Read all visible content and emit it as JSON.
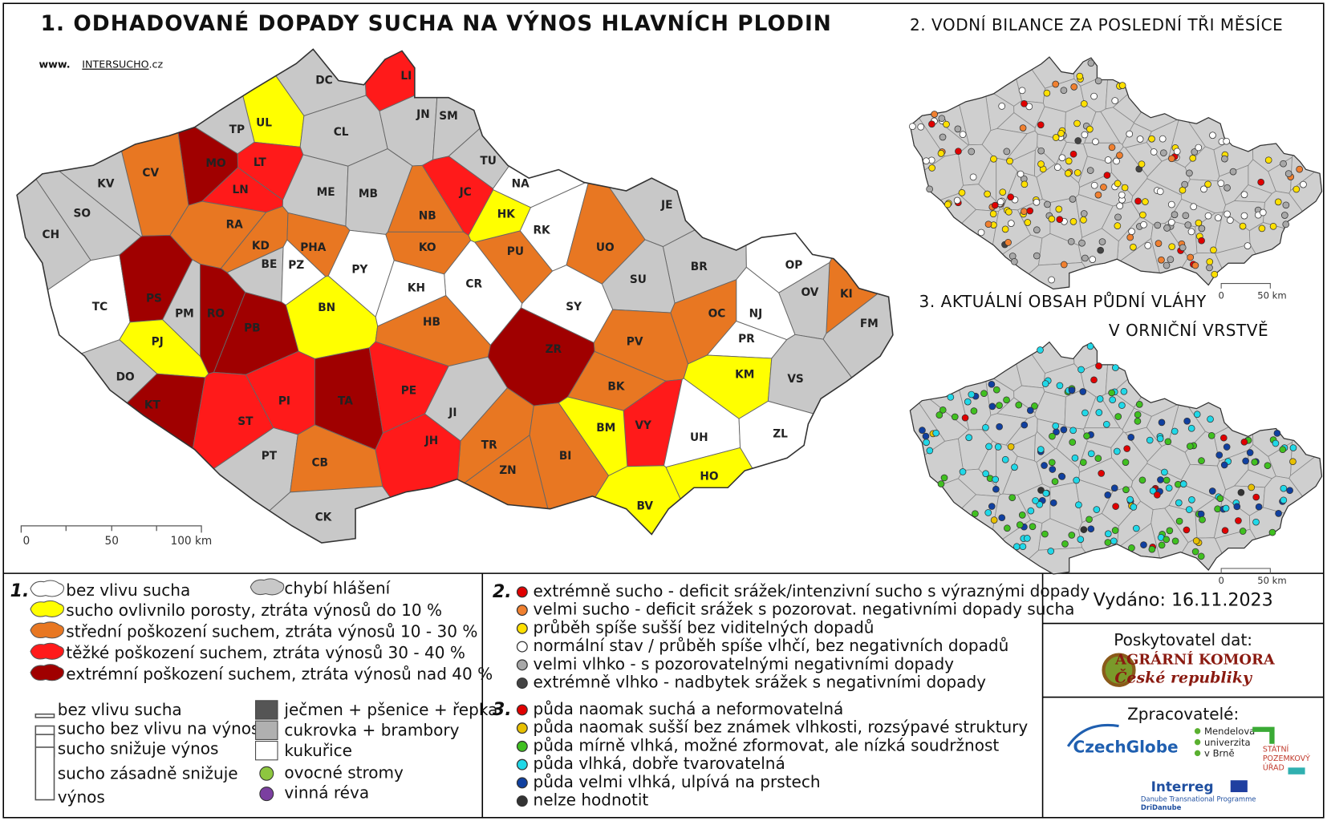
{
  "title": "1. ODHADOVANÉ DOPADY SUCHA NA VÝNOS HLAVNÍCH PLODIN",
  "website": {
    "prefix": "www.",
    "name": "INTERSUCHO",
    "suffix": ".cz"
  },
  "impact_colors": {
    "none": "#ffffff",
    "missing": "#c8c8c8",
    "light": "#ffff00",
    "medium": "#e87722",
    "heavy": "#ff1a1a",
    "extreme": "#a00000"
  },
  "districts": [
    {
      "code": "DC",
      "impact": "missing"
    },
    {
      "code": "LI",
      "impact": "heavy"
    },
    {
      "code": "UL",
      "impact": "light"
    },
    {
      "code": "TP",
      "impact": "missing"
    },
    {
      "code": "CL",
      "impact": "missing"
    },
    {
      "code": "JN",
      "impact": "missing"
    },
    {
      "code": "SM",
      "impact": "missing"
    },
    {
      "code": "MO",
      "impact": "extreme"
    },
    {
      "code": "LT",
      "impact": "heavy"
    },
    {
      "code": "CV",
      "impact": "medium"
    },
    {
      "code": "KV",
      "impact": "missing"
    },
    {
      "code": "LN",
      "impact": "heavy"
    },
    {
      "code": "TU",
      "impact": "missing"
    },
    {
      "code": "JC",
      "impact": "heavy"
    },
    {
      "code": "ME",
      "impact": "missing"
    },
    {
      "code": "MB",
      "impact": "missing"
    },
    {
      "code": "NA",
      "impact": "none"
    },
    {
      "code": "SO",
      "impact": "missing"
    },
    {
      "code": "CH",
      "impact": "missing"
    },
    {
      "code": "RA",
      "impact": "medium"
    },
    {
      "code": "NB",
      "impact": "medium"
    },
    {
      "code": "HK",
      "impact": "light"
    },
    {
      "code": "JE",
      "impact": "missing"
    },
    {
      "code": "RK",
      "impact": "none"
    },
    {
      "code": "KD",
      "impact": "medium"
    },
    {
      "code": "PHA",
      "impact": "medium"
    },
    {
      "code": "KO",
      "impact": "medium"
    },
    {
      "code": "PU",
      "impact": "medium"
    },
    {
      "code": "UO",
      "impact": "medium"
    },
    {
      "code": "BE",
      "impact": "missing"
    },
    {
      "code": "PZ",
      "impact": "none"
    },
    {
      "code": "PY",
      "impact": "none"
    },
    {
      "code": "CR",
      "impact": "none"
    },
    {
      "code": "BR",
      "impact": "missing"
    },
    {
      "code": "OP",
      "impact": "none"
    },
    {
      "code": "SU",
      "impact": "missing"
    },
    {
      "code": "KI",
      "impact": "medium"
    },
    {
      "code": "TC",
      "impact": "none"
    },
    {
      "code": "KH",
      "impact": "none"
    },
    {
      "code": "PS",
      "impact": "extreme"
    },
    {
      "code": "OV",
      "impact": "missing"
    },
    {
      "code": "FM",
      "impact": "missing"
    },
    {
      "code": "PM",
      "impact": "missing"
    },
    {
      "code": "RO",
      "impact": "extreme"
    },
    {
      "code": "SY",
      "impact": "none"
    },
    {
      "code": "BN",
      "impact": "light"
    },
    {
      "code": "NJ",
      "impact": "none"
    },
    {
      "code": "OC",
      "impact": "medium"
    },
    {
      "code": "PB",
      "impact": "extreme"
    },
    {
      "code": "HB",
      "impact": "medium"
    },
    {
      "code": "PJ",
      "impact": "light"
    },
    {
      "code": "PV",
      "impact": "medium"
    },
    {
      "code": "PR",
      "impact": "none"
    },
    {
      "code": "ZR",
      "impact": "extreme"
    },
    {
      "code": "DO",
      "impact": "missing"
    },
    {
      "code": "KM",
      "impact": "light"
    },
    {
      "code": "VS",
      "impact": "missing"
    },
    {
      "code": "KT",
      "impact": "extreme"
    },
    {
      "code": "ST",
      "impact": "heavy"
    },
    {
      "code": "PI",
      "impact": "heavy"
    },
    {
      "code": "TA",
      "impact": "extreme"
    },
    {
      "code": "PE",
      "impact": "heavy"
    },
    {
      "code": "BK",
      "impact": "medium"
    },
    {
      "code": "VY",
      "impact": "heavy"
    },
    {
      "code": "JI",
      "impact": "missing"
    },
    {
      "code": "BM",
      "impact": "light"
    },
    {
      "code": "UH",
      "impact": "none"
    },
    {
      "code": "ZL",
      "impact": "none"
    },
    {
      "code": "TR",
      "impact": "medium"
    },
    {
      "code": "JH",
      "impact": "heavy"
    },
    {
      "code": "PT",
      "impact": "missing"
    },
    {
      "code": "CB",
      "impact": "medium"
    },
    {
      "code": "BI",
      "impact": "medium"
    },
    {
      "code": "ZN",
      "impact": "medium"
    },
    {
      "code": "HO",
      "impact": "light"
    },
    {
      "code": "BV",
      "impact": "light"
    },
    {
      "code": "CK",
      "impact": "missing"
    }
  ],
  "scale": [
    "0",
    "50",
    "100 km"
  ],
  "map2": {
    "title": "2. VODNÍ BILANCE ZA POSLEDNÍ TŘI MĚSÍCE",
    "scale": [
      "0",
      "50 km"
    ]
  },
  "map3": {
    "title_lines": [
      "3. AKTUÁLNÍ OBSAH PŮDNÍ VLÁHY",
      "V ORNIČNÍ VRSTVĚ"
    ],
    "scale": [
      "0",
      "50 km"
    ]
  },
  "legend1": {
    "number": "1.",
    "impact_items": [
      {
        "impact": "none",
        "label": "bez vlivu sucha"
      },
      {
        "impact": "missing",
        "label": "chybí hlášení"
      },
      {
        "impact": "light",
        "label": "sucho ovlivnilo porosty, ztráta výnosů do 10 %"
      },
      {
        "impact": "medium",
        "label": "střední poškození suchem, ztráta výnosů 10 - 30 %"
      },
      {
        "impact": "heavy",
        "label": "těžké poškození suchem, ztráta výnosů 30 - 40 %"
      },
      {
        "impact": "extreme",
        "label": "extrémní poškození suchem, ztráta výnosů nad 40 %"
      }
    ],
    "bar_items": [
      [
        "bez vlivu sucha"
      ],
      [
        "sucho bez vlivu na výnos"
      ],
      [
        "sucho snižuje výnos"
      ],
      [
        "sucho zásadně snižuje",
        "výnos"
      ]
    ],
    "crop_items": [
      {
        "color": "#555555",
        "label": "ječmen + pšenice + řepka"
      },
      {
        "color": "#b0b0b0",
        "label": "cukrovka + brambory"
      },
      {
        "color": "#ffffff",
        "label": "kukuřice"
      },
      {
        "color": "#8dc63f",
        "label": "ovocné stromy"
      },
      {
        "color": "#7b3fa0",
        "label": "vinná réva"
      }
    ]
  },
  "legend2": {
    "number": "2.",
    "items": [
      {
        "color": "#e00000",
        "label": "extrémně sucho - deficit srážek/intenzivní sucho s výraznými dopady"
      },
      {
        "color": "#f08030",
        "label": "velmi sucho - deficit srážek s pozorovat. negativními dopady sucha"
      },
      {
        "color": "#ffe000",
        "label": "průběh spíše sušší bez viditelných dopadů"
      },
      {
        "color": "#ffffff",
        "label": "normální stav / průběh spíše vlhčí, bez negativních dopadů"
      },
      {
        "color": "#a8a8a8",
        "label": "velmi vlhko - s pozorovatelnými negativními dopady"
      },
      {
        "color": "#444444",
        "label": "extrémně vlhko - nadbytek srážek s negativními dopady"
      }
    ]
  },
  "legend3": {
    "number": "3.",
    "items": [
      {
        "color": "#e00000",
        "label": "půda naomak suchá a neformovatelná"
      },
      {
        "color": "#e8c000",
        "label": "půda naomak sušší bez známek vlhkosti, rozsýpavé struktury"
      },
      {
        "color": "#40c020",
        "label": "půda mírně vlhká, možné zformovat, ale nízká soudržnost"
      },
      {
        "color": "#20d8e8",
        "label": "půda vlhká, dobře tvarovatelná"
      },
      {
        "color": "#1040a0",
        "label": "půda velmi vlhká, ulpívá na prstech"
      },
      {
        "color": "#333333",
        "label": "nelze hodnotit"
      }
    ]
  },
  "issued": "Vydáno: 16.11.2023",
  "provider": {
    "heading": "Poskytovatel dat:",
    "name_lines": [
      "AGRÁRNÍ KOMORA",
      "České republiky"
    ]
  },
  "processors": {
    "heading": "Zpracovatelé:",
    "czechglobe": "CzechGlobe",
    "mendel": [
      "Mendelova",
      "univerzita",
      "v Brně"
    ],
    "spu": [
      "STÁTNÍ",
      "POZEMKOVÝ",
      "ÚŘAD"
    ],
    "interreg": "Interreg",
    "interreg_sub": [
      "Danube Transnational Programme",
      "DriDanube"
    ]
  }
}
